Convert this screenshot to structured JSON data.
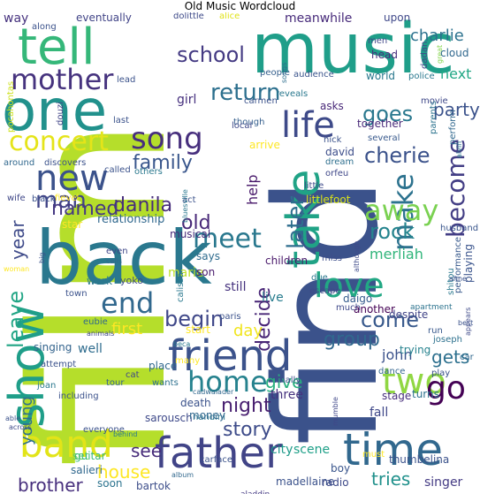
{
  "title": "Old Music Wordcloud",
  "words": [
    {
      "text": "film",
      "color": "#b5de2b"
    },
    {
      "text": "find",
      "color": "#3b528b"
    },
    {
      "text": "music",
      "color": "#1f9e89"
    },
    {
      "text": "back",
      "color": "#2a788e"
    },
    {
      "text": "tell",
      "color": "#35b779"
    },
    {
      "text": "one",
      "color": "#21918c"
    },
    {
      "text": "take",
      "color": "#20a386"
    },
    {
      "text": "father",
      "color": "#414487"
    },
    {
      "text": "time",
      "color": "#31688e"
    },
    {
      "text": "show",
      "color": "#1f9e89"
    },
    {
      "text": "friend",
      "color": "#3b528b"
    },
    {
      "text": "band",
      "color": "#e2e418"
    },
    {
      "text": "new",
      "color": "#3b528b"
    },
    {
      "text": "love",
      "color": "#22a884"
    },
    {
      "text": "make",
      "color": "#2c728e"
    },
    {
      "text": "two",
      "color": "#90d743"
    },
    {
      "text": "mother",
      "color": "#46337e"
    },
    {
      "text": "song",
      "color": "#472f7d"
    },
    {
      "text": "life",
      "color": "#3e4a89"
    },
    {
      "text": "party",
      "color": "#3b528b"
    },
    {
      "text": "become",
      "color": "#433e85"
    },
    {
      "text": "concert",
      "color": "#e5e419"
    },
    {
      "text": "meet",
      "color": "#2a788e"
    },
    {
      "text": "away",
      "color": "#7ad151"
    },
    {
      "text": "later",
      "color": "#2e6e8e"
    },
    {
      "text": "end",
      "color": "#31688e"
    },
    {
      "text": "home",
      "color": "#26828e"
    },
    {
      "text": "go",
      "color": "#440154"
    },
    {
      "text": "return",
      "color": "#2d708e"
    },
    {
      "text": "school",
      "color": "#443a83"
    },
    {
      "text": "man",
      "color": "#414487"
    },
    {
      "text": "leave",
      "color": "#21a585"
    },
    {
      "text": "cherie",
      "color": "#3b528b"
    },
    {
      "text": "family",
      "color": "#39568c"
    },
    {
      "text": "danila",
      "color": "#472d7b"
    },
    {
      "text": "goes",
      "color": "#2a788e"
    },
    {
      "text": "come",
      "color": "#38598c"
    },
    {
      "text": "decide",
      "color": "#482576"
    },
    {
      "text": "begin",
      "color": "#3f4788"
    },
    {
      "text": "rock",
      "color": "#25848e"
    },
    {
      "text": "old",
      "color": "#482878"
    },
    {
      "text": "named",
      "color": "#453882"
    },
    {
      "text": "story",
      "color": "#3e4c8a"
    },
    {
      "text": "night",
      "color": "#481f70"
    },
    {
      "text": "group",
      "color": "#31688e"
    },
    {
      "text": "gets",
      "color": "#2d708e"
    },
    {
      "text": "give",
      "color": "#29af7f"
    },
    {
      "text": "house",
      "color": "#fde725"
    },
    {
      "text": "brother",
      "color": "#472f7d"
    },
    {
      "text": "see",
      "color": "#472c7a"
    },
    {
      "text": "tries",
      "color": "#21918c"
    },
    {
      "text": "year",
      "color": "#3e4a89"
    },
    {
      "text": "young",
      "color": "#2e6f8e"
    },
    {
      "text": "first",
      "color": "#fde725"
    },
    {
      "text": "day",
      "color": "#f1e51d"
    },
    {
      "text": "charlie",
      "color": "#2c728e"
    },
    {
      "text": "next",
      "color": "#22a785"
    },
    {
      "text": "help",
      "color": "#48186a"
    },
    {
      "text": "merliah",
      "color": "#31b57b"
    },
    {
      "text": "john",
      "color": "#3b528b"
    },
    {
      "text": "meanwhile",
      "color": "#472a7a"
    },
    {
      "text": "eventually",
      "color": "#414487"
    },
    {
      "text": "people",
      "color": "#355f8d"
    },
    {
      "text": "audience",
      "color": "#3a538b"
    },
    {
      "text": "world",
      "color": "#2a788e"
    },
    {
      "text": "together",
      "color": "#482979"
    },
    {
      "text": "girl",
      "color": "#46307e"
    },
    {
      "text": "relationship",
      "color": "#31688e"
    },
    {
      "text": "says",
      "color": "#2f6c8e"
    },
    {
      "text": "marie",
      "color": "#bddf26"
    },
    {
      "text": "children",
      "color": "#481769"
    },
    {
      "text": "live",
      "color": "#287c8e"
    },
    {
      "text": "singing",
      "color": "#33638d"
    },
    {
      "text": "place",
      "color": "#31688e"
    },
    {
      "text": "well",
      "color": "#2f6c8e"
    },
    {
      "text": "david",
      "color": "#3d4e8a"
    },
    {
      "text": "dream",
      "color": "#2e6f8e"
    },
    {
      "text": "another",
      "color": "#440154"
    },
    {
      "text": "stage",
      "color": "#472e7c"
    },
    {
      "text": "fall",
      "color": "#3f4889"
    },
    {
      "text": "three",
      "color": "#46327e"
    },
    {
      "text": "city",
      "color": "#1f9a8a"
    },
    {
      "text": "scene",
      "color": "#1fa088"
    },
    {
      "text": "singer",
      "color": "#443b84"
    },
    {
      "text": "thumbelina",
      "color": "#3b528b"
    },
    {
      "text": "boy",
      "color": "#39558c"
    },
    {
      "text": "musical",
      "color": "#472c7a"
    },
    {
      "text": "littlefoot",
      "color": "#d8e219"
    },
    {
      "text": "son",
      "color": "#481a6c"
    },
    {
      "text": "still",
      "color": "#46327e"
    },
    {
      "text": "escape",
      "color": "#3e4989"
    },
    {
      "text": "work",
      "color": "#2a788e"
    },
    {
      "text": "yoko",
      "color": "#3d4d8a"
    },
    {
      "text": "apartment",
      "color": "#2c738e"
    },
    {
      "text": "tour",
      "color": "#33638d"
    },
    {
      "text": "wants",
      "color": "#2d708e"
    },
    {
      "text": "sarousch",
      "color": "#3e4989"
    },
    {
      "text": "nandini",
      "color": "#2a768e"
    },
    {
      "text": "bartok",
      "color": "#3d4e8a"
    },
    {
      "text": "aladdin",
      "color": "#443983"
    },
    {
      "text": "madellaine",
      "color": "#3b528b"
    },
    {
      "text": "radio",
      "color": "#3e4a89"
    },
    {
      "text": "soon",
      "color": "#2c738e"
    },
    {
      "text": "salieri",
      "color": "#31688e"
    },
    {
      "text": "set",
      "color": "#6ccd5a"
    },
    {
      "text": "guitar",
      "color": "#37b878"
    },
    {
      "text": "death",
      "color": "#3b528b"
    },
    {
      "text": "money",
      "color": "#31688e"
    },
    {
      "text": "daigo",
      "color": "#365c8d"
    },
    {
      "text": "much",
      "color": "#3f4889"
    },
    {
      "text": "miss",
      "color": "#3d4d8a"
    },
    {
      "text": "due",
      "color": "#2a788e"
    },
    {
      "text": "despite",
      "color": "#414487"
    },
    {
      "text": "husband",
      "color": "#39558c"
    },
    {
      "text": "playing",
      "color": "#3a548c"
    },
    {
      "text": "shitou",
      "color": "#2a788e"
    },
    {
      "text": "run",
      "color": "#38588c"
    },
    {
      "text": "joseph",
      "color": "#2d718e"
    },
    {
      "text": "trying",
      "color": "#26828e"
    },
    {
      "text": "play",
      "color": "#3b528b"
    },
    {
      "text": "turns",
      "color": "#2c728e"
    },
    {
      "text": "dance",
      "color": "#32658e"
    },
    {
      "text": "finally",
      "color": "#3d4d8a"
    },
    {
      "text": "car",
      "color": "#31688e"
    },
    {
      "text": "way",
      "color": "#46327e"
    },
    {
      "text": "along",
      "color": "#3b528b"
    },
    {
      "text": "upon",
      "color": "#3f4889"
    },
    {
      "text": "alice",
      "color": "#e0e318"
    },
    {
      "text": "dolittle",
      "color": "#3e4a89"
    },
    {
      "text": "dadan",
      "color": "#3f4788"
    },
    {
      "text": "great",
      "color": "#84d44b"
    },
    {
      "text": "cloud",
      "color": "#31688e"
    },
    {
      "text": "men",
      "color": "#3f4788"
    },
    {
      "text": "head",
      "color": "#472f7d"
    },
    {
      "text": "pocahontas",
      "color": "#cde11d"
    },
    {
      "text": "lead",
      "color": "#3b528b"
    },
    {
      "text": "songs",
      "color": "#2e6e8e"
    },
    {
      "text": "police",
      "color": "#2a788e"
    },
    {
      "text": "movie",
      "color": "#3f4889"
    },
    {
      "text": "parents",
      "color": "#2c738e"
    },
    {
      "text": "perform",
      "color": "#31688e"
    },
    {
      "text": "douzi",
      "color": "#414487"
    },
    {
      "text": "last",
      "color": "#3b528b"
    },
    {
      "text": "though",
      "color": "#355f8d"
    },
    {
      "text": "carmen",
      "color": "#3b528b"
    },
    {
      "text": "reveals",
      "color": "#2a788e"
    },
    {
      "text": "asks",
      "color": "#482878"
    },
    {
      "text": "local",
      "color": "#3e4a89"
    },
    {
      "text": "nick",
      "color": "#3b528b"
    },
    {
      "text": "arrive",
      "color": "#fde725"
    },
    {
      "text": "several",
      "color": "#38598c"
    },
    {
      "text": "orfeu",
      "color": "#3f4788"
    },
    {
      "text": "alvin",
      "color": "#2a788e"
    },
    {
      "text": "around",
      "color": "#31688e"
    },
    {
      "text": "discovers",
      "color": "#3b528b"
    },
    {
      "text": "called",
      "color": "#3b528b"
    },
    {
      "text": "others",
      "color": "#2a788e"
    },
    {
      "text": "wife",
      "color": "#3f4788"
    },
    {
      "text": "black",
      "color": "#3b528b"
    },
    {
      "text": "fievel",
      "color": "#fde725"
    },
    {
      "text": "act",
      "color": "#3b528b"
    },
    {
      "text": "bluesville",
      "color": "#2a788e"
    },
    {
      "text": "star",
      "color": "#fde725"
    },
    {
      "text": "little",
      "color": "#3e4a89"
    },
    {
      "text": "performance",
      "color": "#38598c"
    },
    {
      "text": "big",
      "color": "#3b528b"
    },
    {
      "text": "even",
      "color": "#3f4788"
    },
    {
      "text": "calls",
      "color": "#31688e"
    },
    {
      "text": "woman",
      "color": "#fde725"
    },
    {
      "text": "town",
      "color": "#3b528b"
    },
    {
      "text": "paris",
      "color": "#3b528b"
    },
    {
      "text": "calissa",
      "color": "#2a788e"
    },
    {
      "text": "start",
      "color": "#fde725"
    },
    {
      "text": "although",
      "color": "#3e4a89"
    },
    {
      "text": "anne",
      "color": "#3b528b"
    },
    {
      "text": "eubie",
      "color": "#31688e"
    },
    {
      "text": "animals",
      "color": "#3f4788"
    },
    {
      "text": "best",
      "color": "#3b528b"
    },
    {
      "text": "beca",
      "color": "#2a788e"
    },
    {
      "text": "many",
      "color": "#fde725"
    },
    {
      "text": "appears",
      "color": "#3e4a89"
    },
    {
      "text": "attempt",
      "color": "#3b528b"
    },
    {
      "text": "cadwalader",
      "color": "#31688e"
    },
    {
      "text": "cat",
      "color": "#3f4788"
    },
    {
      "text": "including",
      "color": "#3b528b"
    },
    {
      "text": "joan",
      "color": "#2a788e"
    },
    {
      "text": "able",
      "color": "#3b528b"
    },
    {
      "text": "across",
      "color": "#3e4a89"
    },
    {
      "text": "everyone",
      "color": "#3b528b"
    },
    {
      "text": "behind",
      "color": "#2a788e"
    },
    {
      "text": "mumble",
      "color": "#3f4788"
    },
    {
      "text": "must",
      "color": "#fde725"
    },
    {
      "text": "album",
      "color": "#31688e"
    },
    {
      "text": "carface",
      "color": "#3b528b"
    }
  ]
}
